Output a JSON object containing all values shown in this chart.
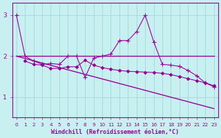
{
  "bg_color": "#c8f0f0",
  "grid_color": "#a0d8d8",
  "line_color": "#990099",
  "xlabel": "Windchill (Refroidissement éolien,°C)",
  "xlabel_fontsize": 6.0,
  "tick_fontsize": 5.2,
  "ytick_fontsize": 6.5,
  "xlim": [
    -0.5,
    23.5
  ],
  "ylim": [
    0.5,
    3.3
  ],
  "yticks": [
    1,
    2,
    3
  ],
  "xticks": [
    0,
    1,
    2,
    3,
    4,
    5,
    6,
    7,
    8,
    9,
    10,
    11,
    12,
    13,
    14,
    15,
    16,
    17,
    18,
    19,
    20,
    21,
    22,
    23
  ],
  "series": [
    {
      "x": [
        0,
        23
      ],
      "y": [
        2.0,
        2.0
      ],
      "marker": null,
      "linestyle": "-",
      "linewidth": 1.0
    },
    {
      "x": [
        0,
        23
      ],
      "y": [
        2.0,
        0.72
      ],
      "marker": null,
      "linestyle": "-",
      "linewidth": 1.0
    },
    {
      "x": [
        1,
        2,
        3,
        4,
        5,
        6,
        7,
        8,
        9,
        10,
        11,
        12,
        13,
        14,
        15,
        16,
        17,
        18,
        19,
        20,
        21,
        22,
        23
      ],
      "y": [
        1.88,
        1.8,
        1.78,
        1.7,
        1.7,
        1.74,
        1.74,
        1.9,
        1.78,
        1.72,
        1.68,
        1.65,
        1.63,
        1.62,
        1.61,
        1.6,
        1.58,
        1.55,
        1.5,
        1.45,
        1.4,
        1.35,
        1.28
      ],
      "marker": "D",
      "markersize": 2.2,
      "linestyle": "-",
      "linewidth": 0.8
    },
    {
      "x": [
        0,
        1,
        2,
        3,
        4,
        5,
        6,
        7,
        8,
        9,
        10,
        11,
        12,
        13,
        14,
        15,
        16,
        17,
        18,
        19,
        20,
        21,
        22,
        23
      ],
      "y": [
        3.0,
        2.0,
        1.88,
        1.8,
        1.82,
        1.8,
        2.0,
        2.0,
        1.48,
        1.95,
        2.0,
        2.05,
        2.38,
        2.38,
        2.6,
        3.0,
        2.35,
        1.8,
        1.78,
        1.75,
        1.65,
        1.52,
        1.35,
        1.25
      ],
      "marker": "+",
      "markersize": 4.0,
      "linestyle": "-",
      "linewidth": 0.8
    }
  ]
}
